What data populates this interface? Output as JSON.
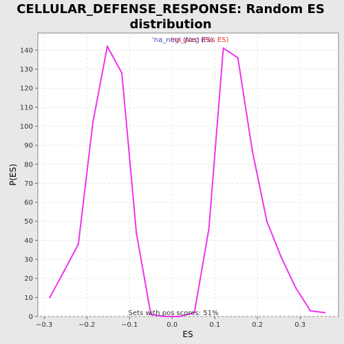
{
  "chart_data": {
    "type": "line",
    "title_lines": [
      "CELLULAR_DEFENSE_RESPONSE: Random ES",
      "distribution"
    ],
    "xlabel": "ES",
    "ylabel": "P(ES)",
    "xlim": [
      -0.315,
      0.39
    ],
    "ylim": [
      0,
      149
    ],
    "x_ticks": [
      -0.3,
      -0.2,
      -0.1,
      0.0,
      0.1,
      0.2,
      0.3
    ],
    "x_tick_labels": [
      "−0.3",
      "−0.2",
      "−0.1",
      "0.0",
      "0.1",
      "0.2",
      "0.3"
    ],
    "y_ticks": [
      0,
      10,
      20,
      30,
      40,
      50,
      60,
      70,
      80,
      90,
      100,
      110,
      120,
      130,
      140
    ],
    "y_tick_labels": [
      "0",
      "10",
      "20",
      "30",
      "40",
      "50",
      "60",
      "70",
      "80",
      "90",
      "100",
      "110",
      "120",
      "130",
      "140"
    ],
    "grid": true,
    "legend": [
      {
        "label": "'na_neg' (Neg ES)",
        "color": "#4040cc"
      },
      {
        "label": "'na_pos' (Pos ES)",
        "color": "#e0301e"
      }
    ],
    "series": [
      {
        "color": "#ee33ee",
        "x": [
          -0.287,
          -0.253,
          -0.22,
          -0.186,
          -0.152,
          -0.118,
          -0.084,
          -0.05,
          -0.016,
          0.018,
          0.052,
          0.086,
          0.12,
          0.154,
          0.188,
          0.222,
          0.256,
          0.29,
          0.324,
          0.358
        ],
        "y": [
          10,
          24,
          38,
          102,
          142,
          128,
          44,
          1,
          0,
          0,
          2,
          46,
          141,
          136,
          87,
          50,
          31,
          15,
          3,
          2
        ]
      }
    ],
    "annotation": "Sets with pos scores: 51%"
  }
}
